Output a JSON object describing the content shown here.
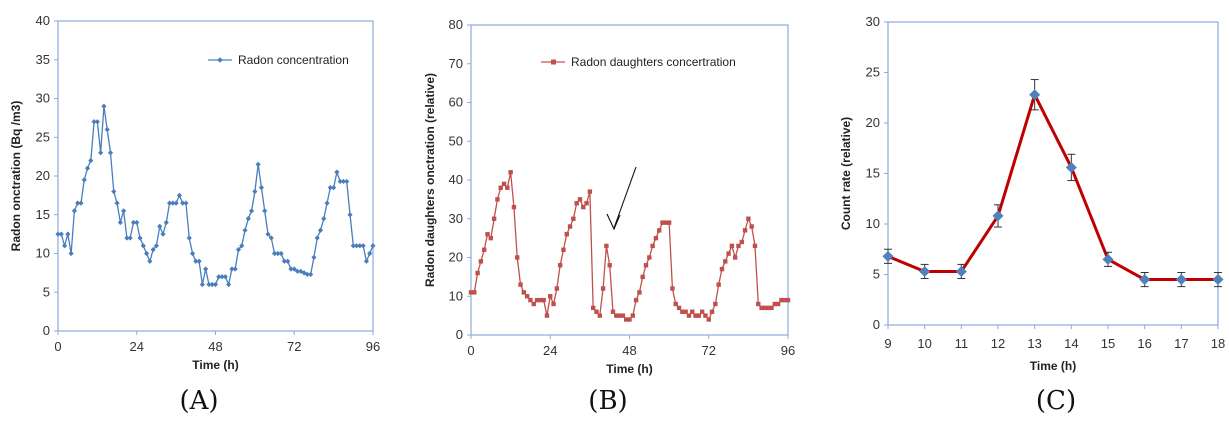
{
  "chart_data": [
    {
      "type": "line",
      "ylabel": "Radon onctration (Bq /m3)",
      "xlabel": "Time (h)",
      "xticks": [
        0,
        24,
        48,
        72,
        96
      ],
      "xlim": [
        0,
        96
      ],
      "ylim": [
        0,
        40
      ],
      "yticks": [
        0,
        5,
        10,
        15,
        20,
        25,
        30,
        35,
        40
      ],
      "legend_position": "top-right",
      "series": [
        {
          "name": "Radon concentration",
          "color": "#4a7ebb",
          "marker": "diamond",
          "x": [
            0,
            1,
            2,
            3,
            4,
            5,
            6,
            7,
            8,
            9,
            10,
            11,
            12,
            13,
            14,
            15,
            16,
            17,
            18,
            19,
            20,
            21,
            22,
            23,
            24,
            25,
            26,
            27,
            28,
            29,
            30,
            31,
            32,
            33,
            34,
            35,
            36,
            37,
            38,
            39,
            40,
            41,
            42,
            43,
            44,
            45,
            46,
            47,
            48,
            49,
            50,
            51,
            52,
            53,
            54,
            55,
            56,
            57,
            58,
            59,
            60,
            61,
            62,
            63,
            64,
            65,
            66,
            67,
            68,
            69,
            70,
            71,
            72,
            73,
            74,
            75,
            76,
            77,
            78,
            79,
            80,
            81,
            82,
            83,
            84,
            85,
            86,
            87,
            88,
            89,
            90,
            91,
            92,
            93,
            94,
            95,
            96
          ],
          "y": [
            12.5,
            12.5,
            11,
            12.5,
            10,
            15.5,
            16.5,
            16.5,
            19.5,
            21,
            22,
            27,
            27,
            23,
            29,
            26,
            23,
            18,
            16.5,
            14,
            15.5,
            12,
            12,
            14,
            14,
            12,
            11,
            10,
            9,
            10.5,
            11,
            13.5,
            12.5,
            14,
            16.5,
            16.5,
            16.5,
            17.5,
            16.5,
            16.5,
            12,
            10,
            9,
            9,
            6,
            8,
            6,
            6,
            6,
            7,
            7,
            7,
            6,
            8,
            8,
            10.5,
            11,
            13,
            14.5,
            15.5,
            18,
            21.5,
            18.5,
            15.5,
            12.5,
            12,
            10,
            10,
            10,
            9,
            9,
            8,
            8,
            7.7,
            7.7,
            7.5,
            7.3,
            7.3,
            9.5,
            12,
            13,
            14.5,
            16.5,
            18.5,
            18.5,
            20.5,
            19.3,
            19.3,
            19.3,
            15,
            11,
            11,
            11,
            11,
            9,
            10,
            11
          ]
        }
      ]
    },
    {
      "type": "line",
      "ylabel": "Radon daughters onctration (relative)",
      "xlabel": "Time (h)",
      "xticks": [
        0,
        24,
        48,
        72,
        96
      ],
      "xlim": [
        0,
        96
      ],
      "ylim": [
        0,
        80
      ],
      "yticks": [
        0,
        10,
        20,
        30,
        40,
        50,
        60,
        70,
        80
      ],
      "legend_position": "top-right",
      "annotation": "arrow pointing to secondary peak near 42 h",
      "series": [
        {
          "name": "Radon daughters  concertration",
          "color": "#c0504d",
          "marker": "square",
          "x": [
            0,
            1,
            2,
            3,
            4,
            5,
            6,
            7,
            8,
            9,
            10,
            11,
            12,
            13,
            14,
            15,
            16,
            17,
            18,
            19,
            20,
            21,
            22,
            23,
            24,
            25,
            26,
            27,
            28,
            29,
            30,
            31,
            32,
            33,
            34,
            35,
            36,
            37,
            38,
            39,
            40,
            41,
            42,
            43,
            44,
            45,
            46,
            47,
            48,
            49,
            50,
            51,
            52,
            53,
            54,
            55,
            56,
            57,
            58,
            59,
            60,
            61,
            62,
            63,
            64,
            65,
            66,
            67,
            68,
            69,
            70,
            71,
            72,
            73,
            74,
            75,
            76,
            77,
            78,
            79,
            80,
            81,
            82,
            83,
            84,
            85,
            86,
            87,
            88,
            89,
            90,
            91,
            92,
            93,
            94,
            95,
            96
          ],
          "y": [
            11,
            11,
            16,
            19,
            22,
            26,
            25,
            30,
            35,
            38,
            39,
            38,
            42,
            33,
            20,
            13,
            11,
            10,
            9,
            8,
            9,
            9,
            9,
            5,
            10,
            8,
            12,
            18,
            22,
            26,
            28,
            30,
            34,
            35,
            33,
            34,
            37,
            7,
            6,
            5,
            12,
            23,
            18,
            6,
            5,
            5,
            5,
            4,
            4,
            5,
            9,
            11,
            15,
            18,
            20,
            23,
            25,
            27,
            29,
            29,
            29,
            12,
            8,
            7,
            6,
            6,
            5,
            6,
            5,
            5,
            6,
            5,
            4,
            6,
            8,
            13,
            17,
            19,
            21,
            23,
            20,
            23,
            24,
            27,
            30,
            28,
            23,
            8,
            7,
            7,
            7,
            7,
            8,
            8,
            9,
            9,
            9
          ]
        }
      ]
    },
    {
      "type": "line",
      "ylabel": "Count rate (relative)",
      "xlabel": "Time (h)",
      "categories": [
        9,
        10,
        11,
        12,
        13,
        14,
        15,
        16,
        17,
        18
      ],
      "ylim": [
        0,
        30
      ],
      "yticks": [
        0,
        5,
        10,
        15,
        20,
        25,
        30
      ],
      "series": [
        {
          "line_color": "#c00000",
          "marker_color": "#4f81bd",
          "marker": "diamond",
          "values": [
            6.8,
            5.3,
            5.3,
            10.8,
            22.8,
            15.6,
            6.5,
            4.5,
            4.5,
            4.5
          ],
          "error": [
            0.7,
            0.7,
            0.7,
            1.1,
            1.5,
            1.3,
            0.7,
            0.7,
            0.7,
            0.7
          ]
        }
      ]
    }
  ],
  "captions": [
    "(A)",
    "(B)",
    "(C)"
  ]
}
